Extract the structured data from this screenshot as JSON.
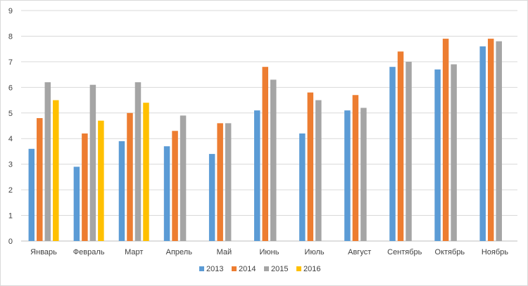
{
  "chart_data": {
    "type": "bar",
    "title": "",
    "xlabel": "",
    "ylabel": "",
    "ylim": [
      0,
      9
    ],
    "yticks": [
      0,
      1,
      2,
      3,
      4,
      5,
      6,
      7,
      8,
      9
    ],
    "grid": true,
    "legend_position": "bottom",
    "categories": [
      "Январь",
      "Февраль",
      "Март",
      "Апрель",
      "Май",
      "Июнь",
      "Июль",
      "Август",
      "Сентябрь",
      "Октябрь",
      "Ноябрь"
    ],
    "series": [
      {
        "name": "2013",
        "color": "#5b9bd5",
        "values": [
          3.6,
          2.9,
          3.9,
          3.7,
          3.4,
          5.1,
          4.2,
          5.1,
          6.8,
          6.7,
          7.6
        ]
      },
      {
        "name": "2014",
        "color": "#ed7d31",
        "values": [
          4.8,
          4.2,
          5.0,
          4.3,
          4.6,
          6.8,
          5.8,
          5.7,
          7.4,
          7.9,
          7.9
        ]
      },
      {
        "name": "2015",
        "color": "#a5a5a5",
        "values": [
          6.2,
          6.1,
          6.2,
          4.9,
          4.6,
          6.3,
          5.5,
          5.2,
          7.0,
          6.9,
          7.8
        ]
      },
      {
        "name": "2016",
        "color": "#ffc000",
        "values": [
          5.5,
          4.7,
          5.4,
          null,
          null,
          null,
          null,
          null,
          null,
          null,
          null
        ]
      }
    ]
  }
}
